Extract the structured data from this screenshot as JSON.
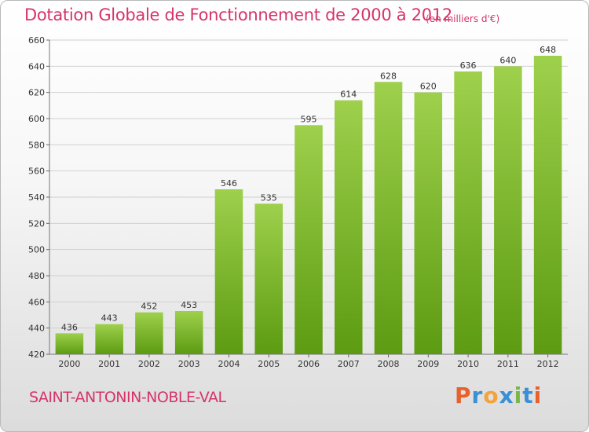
{
  "title": "Dotation Globale de Fonctionnement de 2000 à 2012",
  "unit_note": "(en milliers d'€)",
  "town": "SAINT-ANTONIN-NOBLE-VAL",
  "logo": {
    "text": "Proxiti",
    "colors": [
      "#e8602c",
      "#3a8fd6",
      "#f2a33a",
      "#3a8fd6",
      "#7ab648",
      "#3a8fd6",
      "#e8602c"
    ]
  },
  "colors": {
    "bar_top": "#9ed04c",
    "bar_bottom": "#5c9b12",
    "accent": "#d6336c"
  },
  "chart_data": {
    "type": "bar",
    "categories": [
      "2000",
      "2001",
      "2002",
      "2003",
      "2004",
      "2005",
      "2006",
      "2007",
      "2008",
      "2009",
      "2010",
      "2011",
      "2012"
    ],
    "values": [
      436,
      443,
      452,
      453,
      546,
      535,
      595,
      614,
      628,
      620,
      636,
      640,
      648
    ],
    "title": "Dotation Globale de Fonctionnement de 2000 à 2012",
    "xlabel": "",
    "ylabel": "",
    "ylim": [
      420,
      660
    ],
    "yticks": [
      420,
      440,
      460,
      480,
      500,
      520,
      540,
      560,
      580,
      600,
      620,
      640,
      660
    ],
    "grid": true,
    "legend": "none"
  }
}
